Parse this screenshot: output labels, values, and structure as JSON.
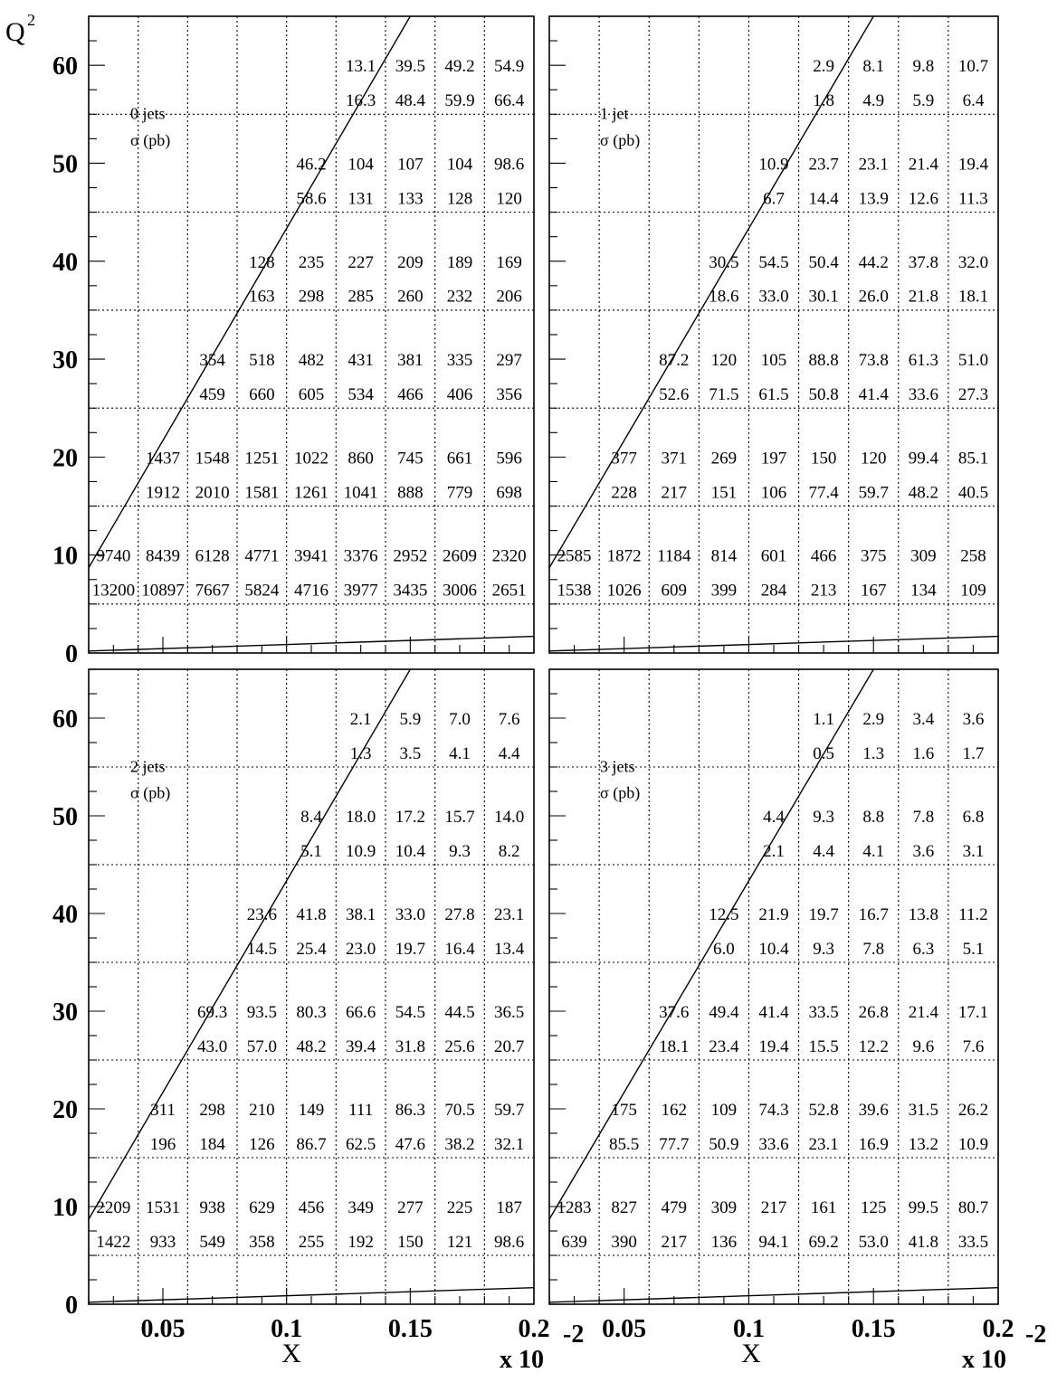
{
  "chart_data": {
    "type": "table",
    "x_axis": {
      "label": "X",
      "range": [
        0.02,
        0.2
      ],
      "tick_labels": [
        {
          "value": 0.05,
          "label": "0.05"
        },
        {
          "value": 0.1,
          "label": "0.1"
        },
        {
          "value": 0.15,
          "label": "0.15"
        },
        {
          "value": 0.2,
          "label": "0.2"
        }
      ],
      "bin_edges": [
        0.02,
        0.04,
        0.06,
        0.08,
        0.1,
        0.12,
        0.14,
        0.16,
        0.18,
        0.2
      ],
      "multiplier": {
        "base": "x 10",
        "exp": "-2"
      }
    },
    "y_axis": {
      "label": "Q",
      "label_sup": "2",
      "range": [
        0,
        65
      ],
      "tick_labels": [
        {
          "value": 0,
          "label": "0"
        },
        {
          "value": 10,
          "label": "10"
        },
        {
          "value": 20,
          "label": "20"
        },
        {
          "value": 30,
          "label": "30"
        },
        {
          "value": 40,
          "label": "40"
        },
        {
          "value": 50,
          "label": "50"
        },
        {
          "value": 60,
          "label": "60"
        }
      ],
      "bin_edges": [
        5,
        15,
        25,
        35,
        45,
        55,
        65
      ],
      "row_values_top": [
        60,
        50,
        40,
        30,
        20,
        10
      ],
      "row_values_bottom": [
        56.5,
        46.5,
        36.5,
        26.5,
        16.5,
        6.5
      ]
    },
    "diagonal_line": {
      "x": [
        0.02,
        0.15
      ],
      "y": [
        8.7,
        65
      ]
    },
    "lower_line": {
      "x": [
        0.02,
        0.2
      ],
      "y": [
        0.2,
        1.7
      ]
    },
    "panels": [
      {
        "label": "0 jets",
        "unit": "σ (pb)",
        "rows": [
          {
            "start": 5,
            "top": [
              "13.1",
              "39.5",
              "49.2",
              "54.9"
            ],
            "bottom": [
              "16.3",
              "48.4",
              "59.9",
              "66.4"
            ]
          },
          {
            "start": 4,
            "top": [
              "46.2",
              "104",
              "107",
              "104",
              "98.6"
            ],
            "bottom": [
              "58.6",
              "131",
              "133",
              "128",
              "120"
            ]
          },
          {
            "start": 3,
            "top": [
              "128",
              "235",
              "227",
              "209",
              "189",
              "169"
            ],
            "bottom": [
              "163",
              "298",
              "285",
              "260",
              "232",
              "206"
            ]
          },
          {
            "start": 2,
            "top": [
              "354",
              "518",
              "482",
              "431",
              "381",
              "335",
              "297"
            ],
            "bottom": [
              "459",
              "660",
              "605",
              "534",
              "466",
              "406",
              "356"
            ]
          },
          {
            "start": 1,
            "top": [
              "1437",
              "1548",
              "1251",
              "1022",
              "860",
              "745",
              "661",
              "596"
            ],
            "bottom": [
              "1912",
              "2010",
              "1581",
              "1261",
              "1041",
              "888",
              "779",
              "698"
            ]
          },
          {
            "start": 0,
            "top": [
              "9740",
              "8439",
              "6128",
              "4771",
              "3941",
              "3376",
              "2952",
              "2609",
              "2320"
            ],
            "bottom": [
              "13200",
              "10897",
              "7667",
              "5824",
              "4716",
              "3977",
              "3435",
              "3006",
              "2651"
            ]
          }
        ]
      },
      {
        "label": "1 jet",
        "unit": "σ (pb)",
        "rows": [
          {
            "start": 5,
            "top": [
              "2.9",
              "8.1",
              "9.8",
              "10.7"
            ],
            "bottom": [
              "1.8",
              "4.9",
              "5.9",
              "6.4"
            ]
          },
          {
            "start": 4,
            "top": [
              "10.9",
              "23.7",
              "23.1",
              "21.4",
              "19.4"
            ],
            "bottom": [
              "6.7",
              "14.4",
              "13.9",
              "12.6",
              "11.3"
            ]
          },
          {
            "start": 3,
            "top": [
              "30.5",
              "54.5",
              "50.4",
              "44.2",
              "37.8",
              "32.0"
            ],
            "bottom": [
              "18.6",
              "33.0",
              "30.1",
              "26.0",
              "21.8",
              "18.1"
            ]
          },
          {
            "start": 2,
            "top": [
              "87.2",
              "120",
              "105",
              "88.8",
              "73.8",
              "61.3",
              "51.0"
            ],
            "bottom": [
              "52.6",
              "71.5",
              "61.5",
              "50.8",
              "41.4",
              "33.6",
              "27.3"
            ]
          },
          {
            "start": 1,
            "top": [
              "377",
              "371",
              "269",
              "197",
              "150",
              "120",
              "99.4",
              "85.1"
            ],
            "bottom": [
              "228",
              "217",
              "151",
              "106",
              "77.4",
              "59.7",
              "48.2",
              "40.5"
            ]
          },
          {
            "start": 0,
            "top": [
              "2585",
              "1872",
              "1184",
              "814",
              "601",
              "466",
              "375",
              "309",
              "258"
            ],
            "bottom": [
              "1538",
              "1026",
              "609",
              "399",
              "284",
              "213",
              "167",
              "134",
              "109"
            ]
          }
        ]
      },
      {
        "label": "2 jets",
        "unit": "σ (pb)",
        "rows": [
          {
            "start": 5,
            "top": [
              "2.1",
              "5.9",
              "7.0",
              "7.6"
            ],
            "bottom": [
              "1.3",
              "3.5",
              "4.1",
              "4.4"
            ]
          },
          {
            "start": 4,
            "top": [
              "8.4",
              "18.0",
              "17.2",
              "15.7",
              "14.0"
            ],
            "bottom": [
              "5.1",
              "10.9",
              "10.4",
              "9.3",
              "8.2"
            ]
          },
          {
            "start": 3,
            "top": [
              "23.6",
              "41.8",
              "38.1",
              "33.0",
              "27.8",
              "23.1"
            ],
            "bottom": [
              "14.5",
              "25.4",
              "23.0",
              "19.7",
              "16.4",
              "13.4"
            ]
          },
          {
            "start": 2,
            "top": [
              "69.3",
              "93.5",
              "80.3",
              "66.6",
              "54.5",
              "44.5",
              "36.5"
            ],
            "bottom": [
              "43.0",
              "57.0",
              "48.2",
              "39.4",
              "31.8",
              "25.6",
              "20.7"
            ]
          },
          {
            "start": 1,
            "top": [
              "311",
              "298",
              "210",
              "149",
              "111",
              "86.3",
              "70.5",
              "59.7"
            ],
            "bottom": [
              "196",
              "184",
              "126",
              "86.7",
              "62.5",
              "47.6",
              "38.2",
              "32.1"
            ]
          },
          {
            "start": 0,
            "top": [
              "2209",
              "1531",
              "938",
              "629",
              "456",
              "349",
              "277",
              "225",
              "187"
            ],
            "bottom": [
              "1422",
              "933",
              "549",
              "358",
              "255",
              "192",
              "150",
              "121",
              "98.6"
            ]
          }
        ]
      },
      {
        "label": "3 jets",
        "unit": "σ (pb)",
        "rows": [
          {
            "start": 5,
            "top": [
              "1.1",
              "2.9",
              "3.4",
              "3.6"
            ],
            "bottom": [
              "0.5",
              "1.3",
              "1.6",
              "1.7"
            ]
          },
          {
            "start": 4,
            "top": [
              "4.4",
              "9.3",
              "8.8",
              "7.8",
              "6.8"
            ],
            "bottom": [
              "2.1",
              "4.4",
              "4.1",
              "3.6",
              "3.1"
            ]
          },
          {
            "start": 3,
            "top": [
              "12.5",
              "21.9",
              "19.7",
              "16.7",
              "13.8",
              "11.2"
            ],
            "bottom": [
              "6.0",
              "10.4",
              "9.3",
              "7.8",
              "6.3",
              "5.1"
            ]
          },
          {
            "start": 2,
            "top": [
              "37.6",
              "49.4",
              "41.4",
              "33.5",
              "26.8",
              "21.4",
              "17.1"
            ],
            "bottom": [
              "18.1",
              "23.4",
              "19.4",
              "15.5",
              "12.2",
              "9.6",
              "7.6"
            ]
          },
          {
            "start": 1,
            "top": [
              "175",
              "162",
              "109",
              "74.3",
              "52.8",
              "39.6",
              "31.5",
              "26.2"
            ],
            "bottom": [
              "85.5",
              "77.7",
              "50.9",
              "33.6",
              "23.1",
              "16.9",
              "13.2",
              "10.9"
            ]
          },
          {
            "start": 0,
            "top": [
              "1283",
              "827",
              "479",
              "309",
              "217",
              "161",
              "125",
              "99.5",
              "80.7"
            ],
            "bottom": [
              "639",
              "390",
              "217",
              "136",
              "94.1",
              "69.2",
              "53.0",
              "41.8",
              "33.5"
            ]
          }
        ]
      }
    ]
  }
}
